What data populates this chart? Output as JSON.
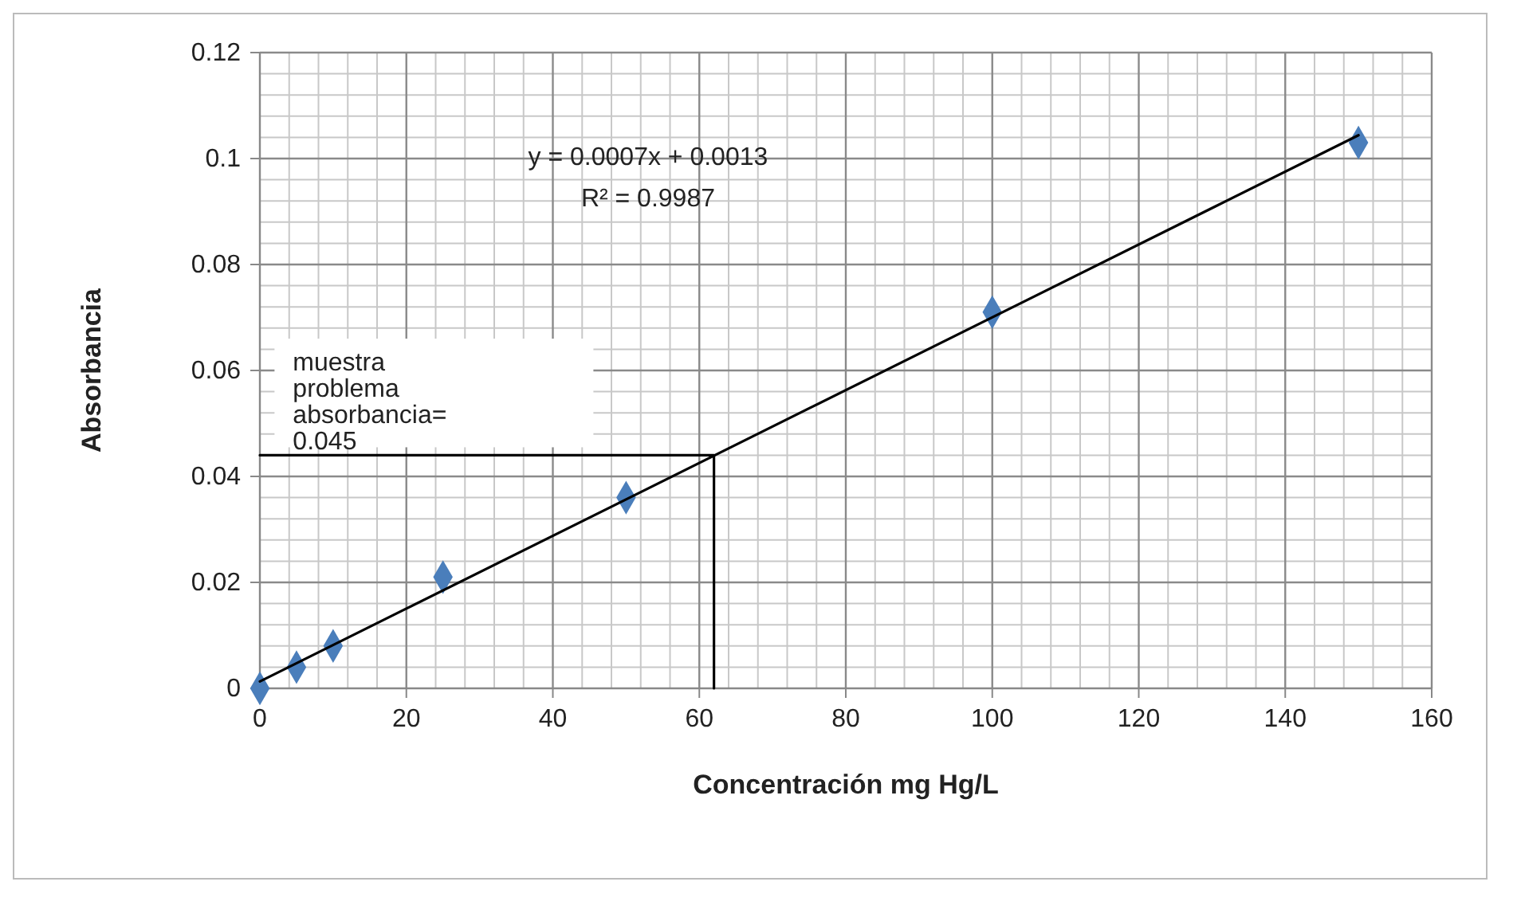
{
  "chart_data": {
    "type": "scatter",
    "xlabel": "Concentración mg Hg/L",
    "ylabel": "Absorbancia",
    "xlim": [
      0,
      160
    ],
    "xticks": [
      0,
      20,
      40,
      60,
      80,
      100,
      120,
      140,
      160
    ],
    "ylim": [
      0,
      0.12
    ],
    "yticks": [
      0,
      0.02,
      0.04,
      0.06,
      0.08,
      0.1,
      0.12
    ],
    "grid": true,
    "marker": "diamond",
    "series": [
      {
        "color": "#4a7ebb",
        "x": [
          0,
          5,
          10,
          25,
          50,
          100,
          150
        ],
        "values": [
          0,
          0.004,
          0.008,
          0.021,
          0.036,
          0.071,
          0.103
        ]
      },
      {
        "type": "line",
        "color": "#000000",
        "marker": "none",
        "x": [
          0,
          150
        ],
        "values": [
          0.0013,
          0.1044
        ]
      },
      {
        "type": "line",
        "color": "#000000",
        "marker": "none",
        "x": [
          0,
          62,
          62
        ],
        "values": [
          0.044,
          0.044,
          0
        ]
      }
    ],
    "annotations": [
      "y = 0.0007x + 0.0013",
      "R² = 0.9987",
      "muestra problema absorbancia= 0.045"
    ]
  }
}
